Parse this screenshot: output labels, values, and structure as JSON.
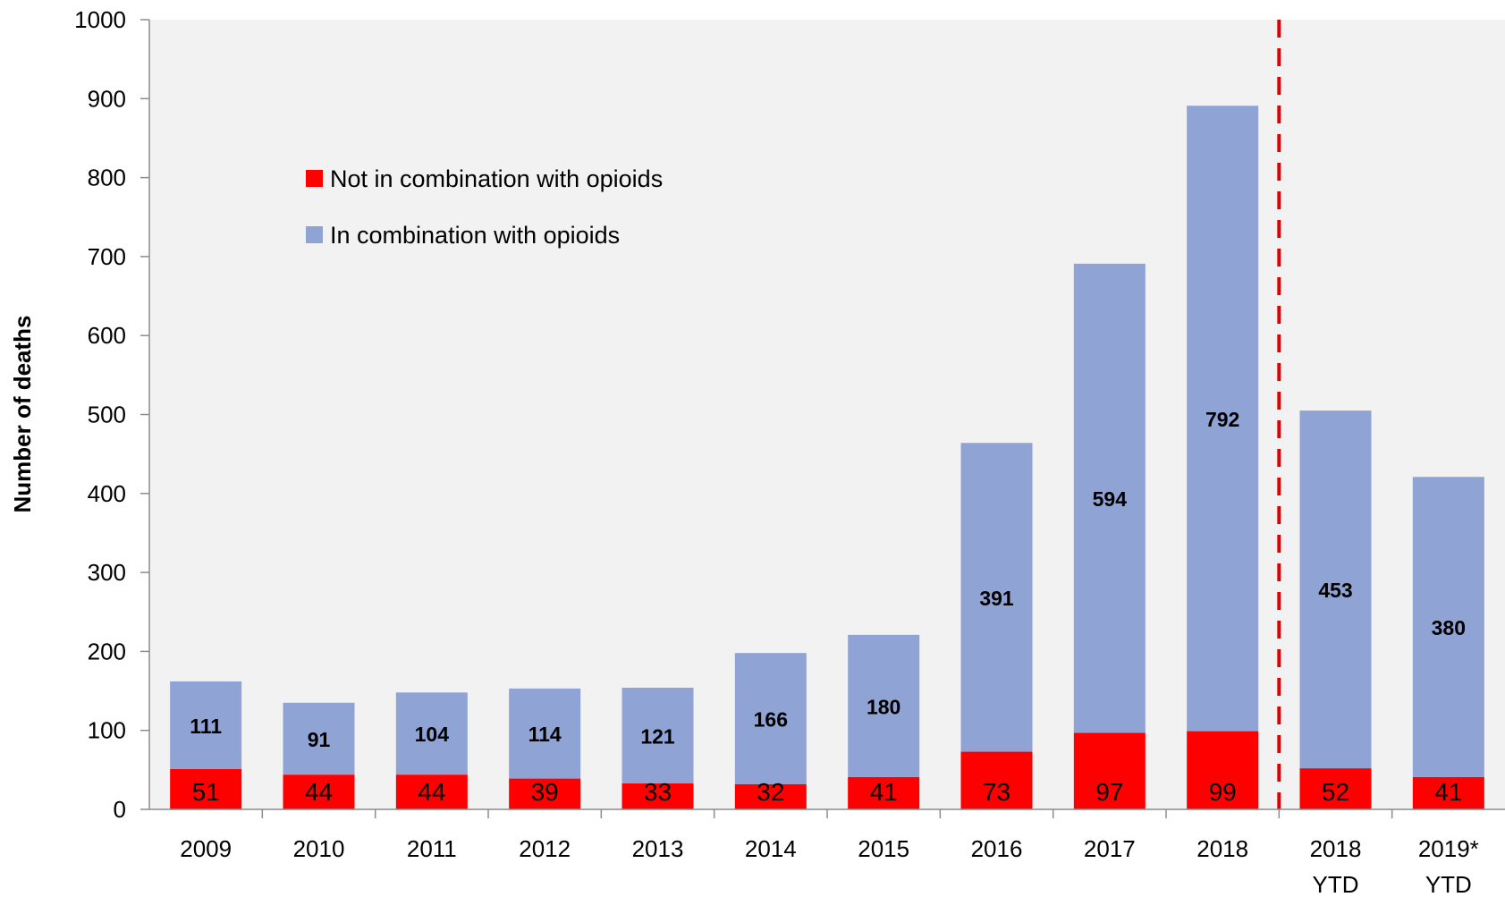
{
  "chart_data": {
    "type": "bar",
    "stacked": true,
    "ylabel": "Number of deaths",
    "xlabel": "",
    "ylim": [
      0,
      1000
    ],
    "yticks": [
      0,
      100,
      200,
      300,
      400,
      500,
      600,
      700,
      800,
      900,
      1000
    ],
    "categories": [
      [
        "2009"
      ],
      [
        "2010"
      ],
      [
        "2011"
      ],
      [
        "2012"
      ],
      [
        "2013"
      ],
      [
        "2014"
      ],
      [
        "2015"
      ],
      [
        "2016"
      ],
      [
        "2017"
      ],
      [
        "2018"
      ],
      [
        "2018",
        "YTD"
      ],
      [
        "2019*",
        "YTD"
      ]
    ],
    "series": [
      {
        "name": "Not in combination with opioids",
        "color": "#ff0000",
        "values": [
          51,
          44,
          44,
          39,
          33,
          32,
          41,
          73,
          97,
          99,
          52,
          41
        ]
      },
      {
        "name": "In combination with opioids",
        "color": "#8fa3d4",
        "values": [
          111,
          91,
          104,
          114,
          121,
          166,
          180,
          391,
          594,
          792,
          453,
          380
        ]
      }
    ],
    "divider": {
      "after_category_index": 9,
      "style": "dashed",
      "color": "#e00000"
    },
    "legend": {
      "placement": "upper-left inside plot"
    },
    "plot_background": "#f2f2f2",
    "grid": false
  }
}
